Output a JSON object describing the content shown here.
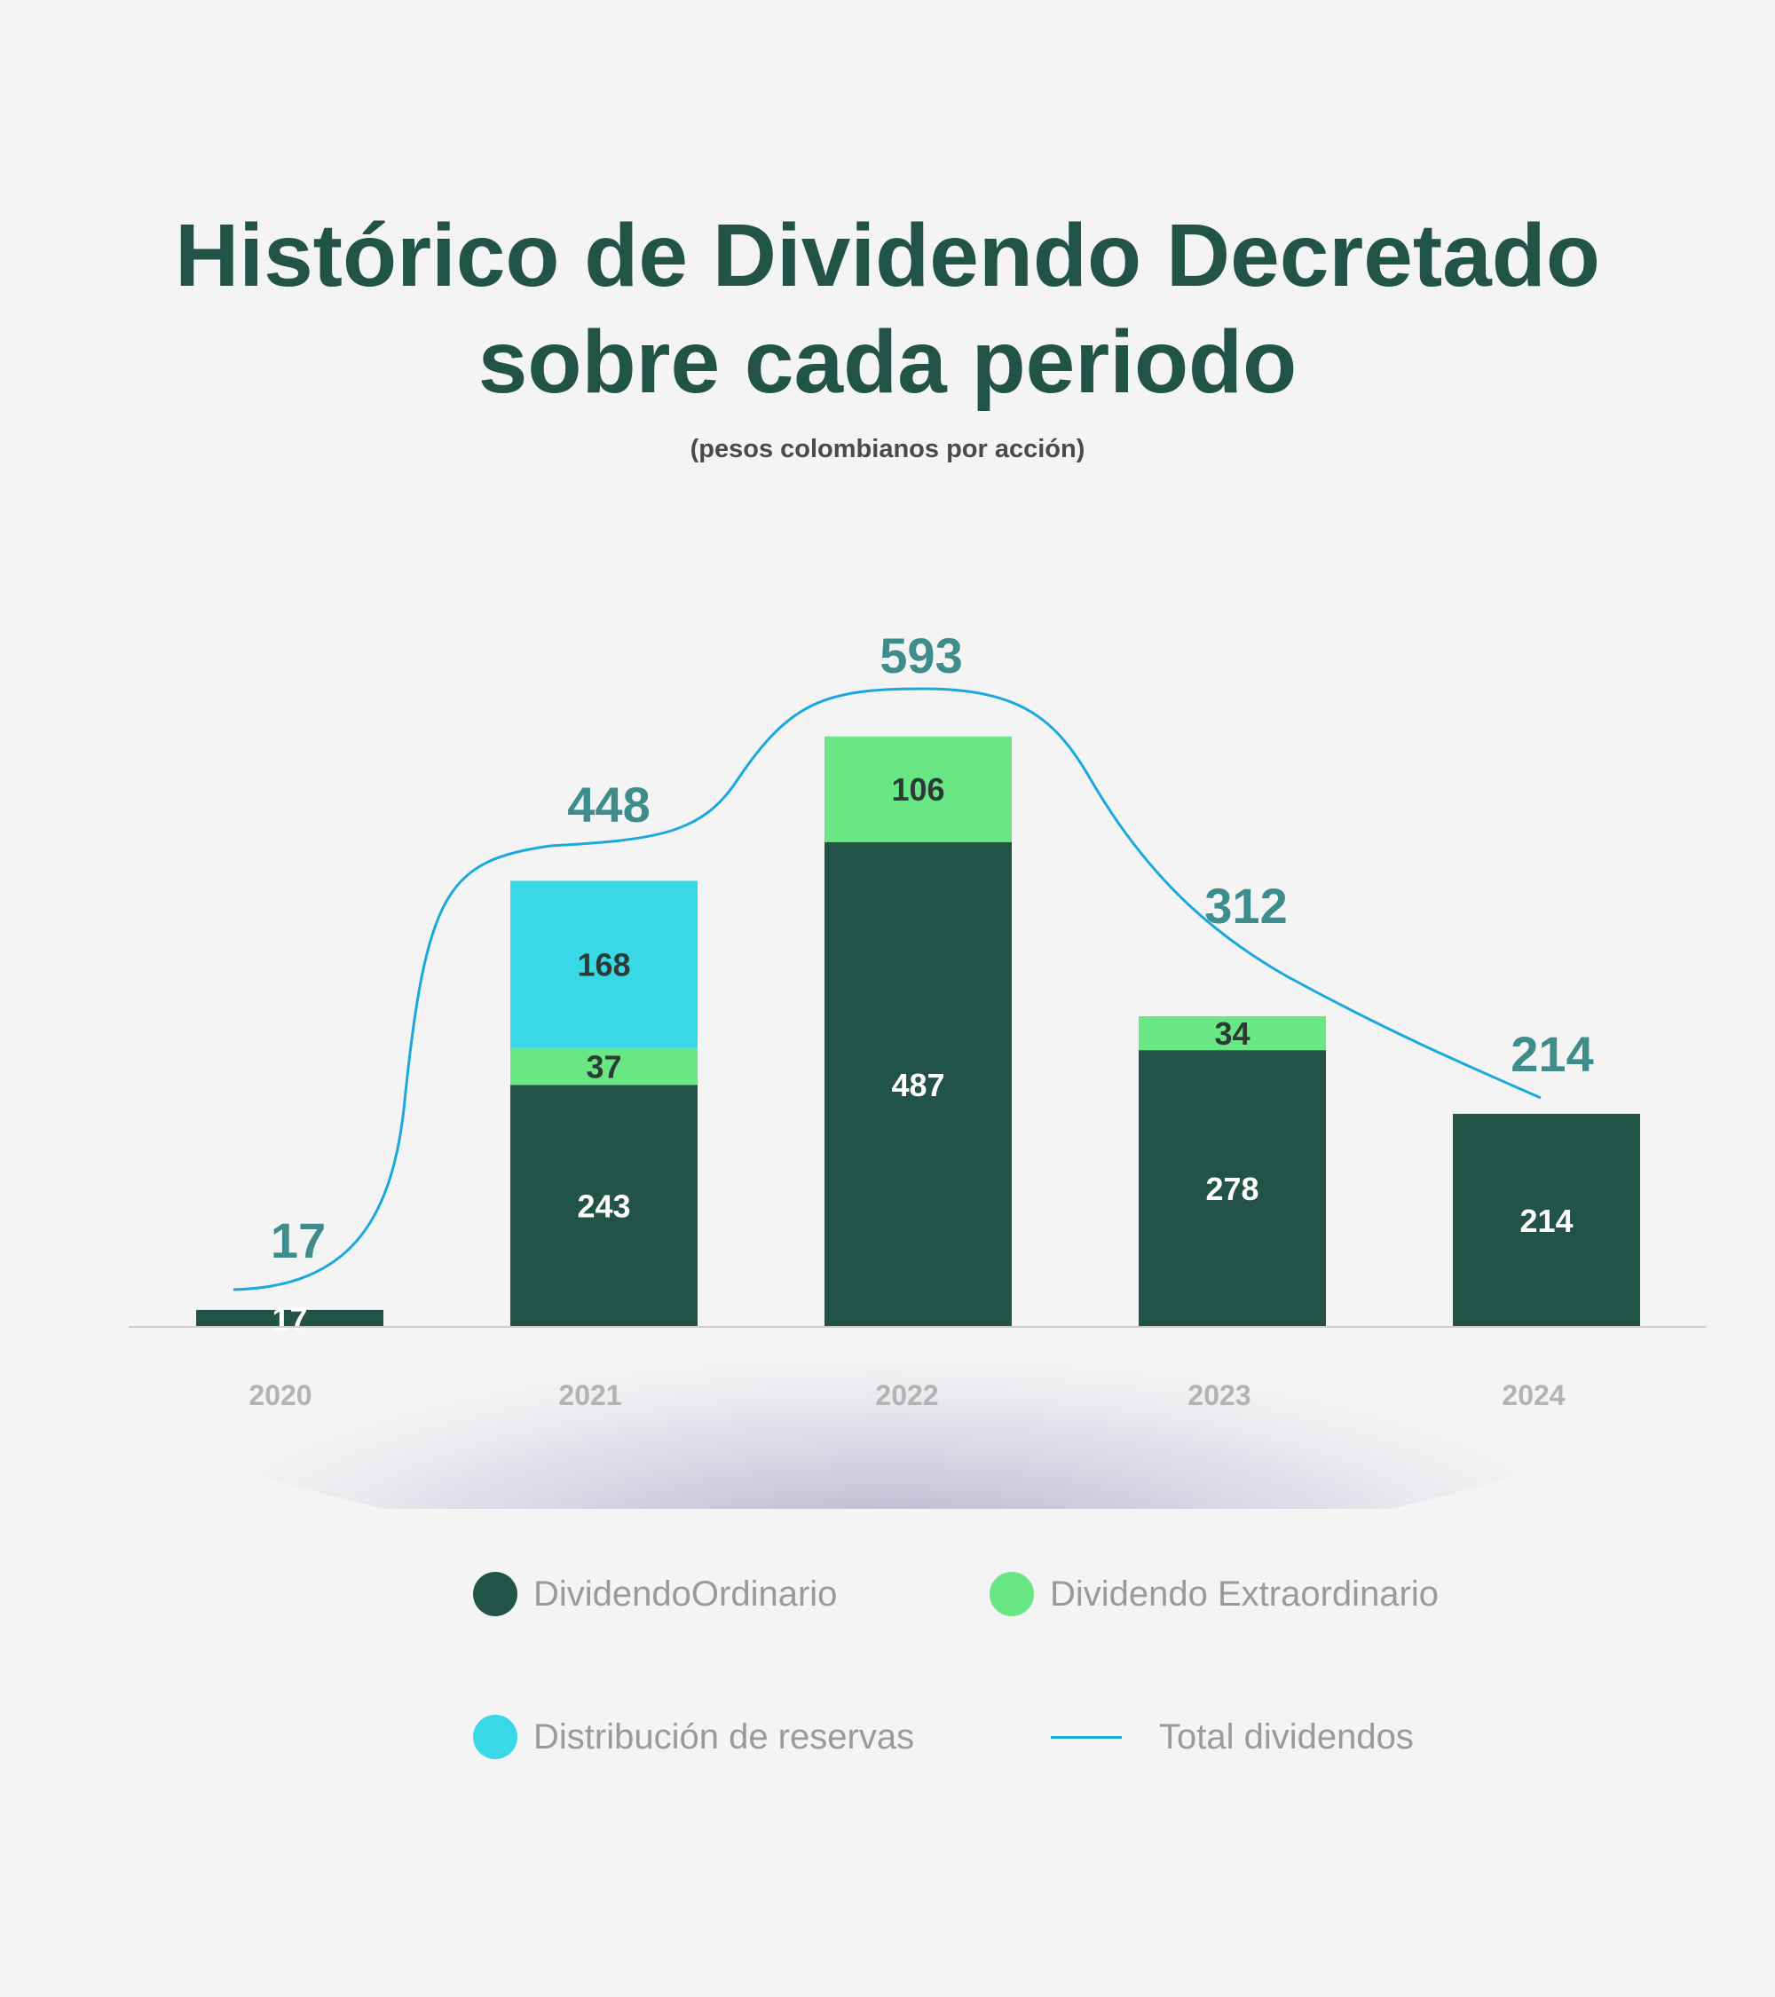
{
  "title_line1": "Histórico de Dividendo Decretado",
  "title_line2": "sobre cada periodo",
  "subtitle": "(pesos colombianos por acción)",
  "colors": {
    "ordinario": "#225347",
    "extraordinario": "#69e784",
    "reservas": "#38d8e6",
    "total_line": "#1aa9dd",
    "total_label": "#3e8c8c",
    "axis_label": "#b3b3b3",
    "background": "#f4f4f4"
  },
  "chart_data": {
    "type": "bar",
    "stacked": true,
    "categories": [
      "2020",
      "2021",
      "2022",
      "2023",
      "2024"
    ],
    "ylim": [
      0,
      700
    ],
    "grid": false,
    "legend_position": "bottom",
    "series": [
      {
        "name": "DividendoOrdinario",
        "values": [
          17,
          243,
          487,
          278,
          214
        ],
        "labels": [
          "17",
          "243",
          "487",
          "278",
          "214"
        ]
      },
      {
        "name": "Dividendo Extraordinario",
        "values": [
          0,
          37,
          106,
          34,
          0
        ],
        "labels": [
          "",
          "37",
          "106",
          "34",
          ""
        ]
      },
      {
        "name": "Distribución de reservas",
        "values": [
          0,
          168,
          0,
          0,
          0
        ],
        "labels": [
          "",
          "168",
          "",
          "",
          ""
        ]
      }
    ],
    "total": {
      "name": "Total dividendos",
      "type": "line",
      "values": [
        17,
        448,
        593,
        312,
        214
      ],
      "labels": [
        "17",
        "448",
        "593",
        "312",
        "214"
      ]
    }
  },
  "legend": {
    "ordinario": "DividendoOrdinario",
    "extraordinario": "Dividendo Extraordinario",
    "reservas": "Distribución de reservas",
    "total": "Total dividendos"
  }
}
